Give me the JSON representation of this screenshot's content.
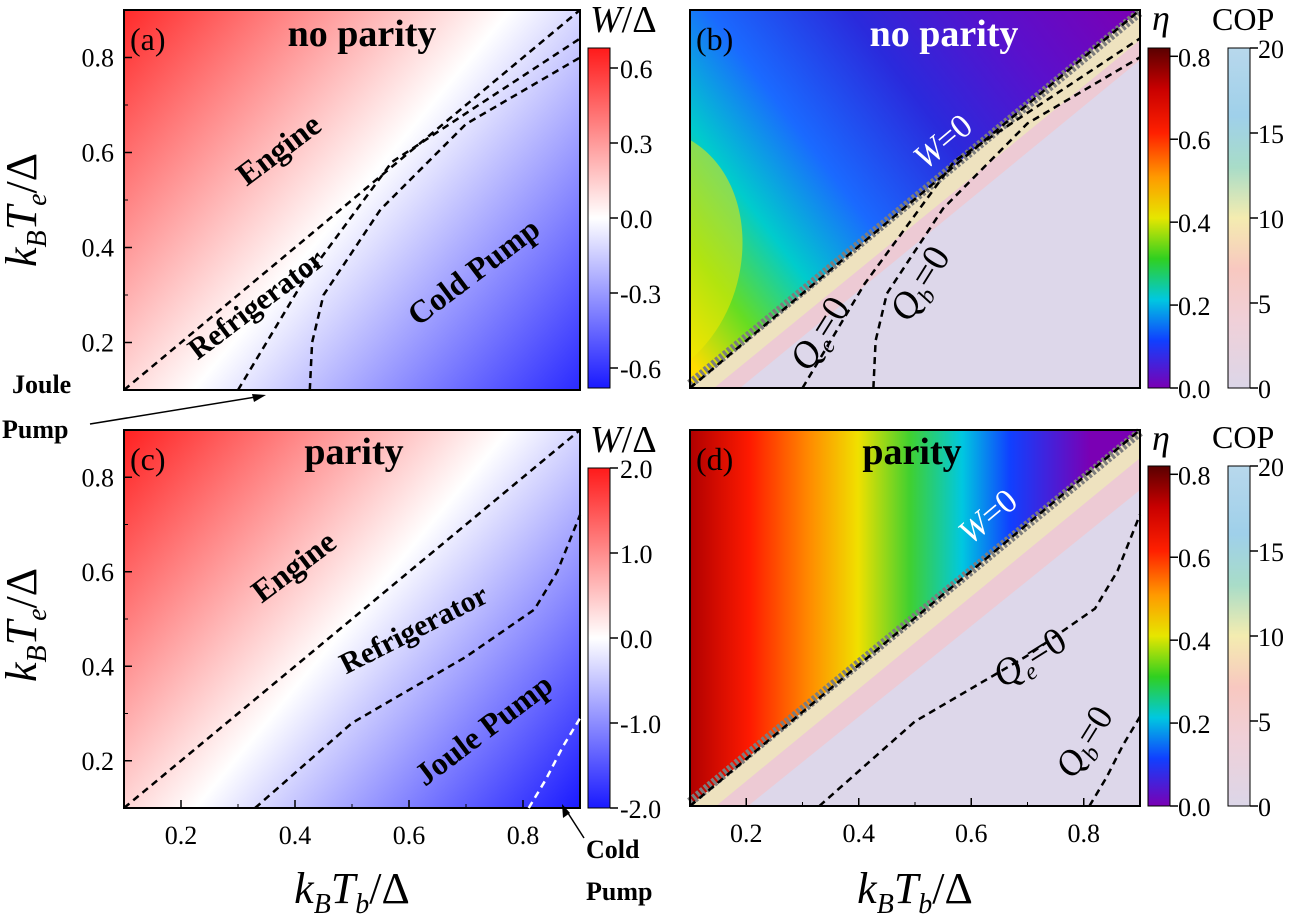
{
  "chart_data": [
    {
      "panel": "a",
      "type": "heatmap",
      "panel_label": "(a)",
      "title": "no parity",
      "ylabel_parts": {
        "k": "k",
        "B": "B",
        "T": "T",
        "e": "e",
        "rest": "/Δ"
      },
      "xlim": [
        0.1,
        0.9
      ],
      "ylim": [
        0.1,
        0.9
      ],
      "yticks": [
        0.2,
        0.4,
        0.6,
        0.8
      ],
      "ytick_labels": [
        "0.2",
        "0.4",
        "0.6",
        "0.8"
      ],
      "colorbar": {
        "label_parts": {
          "w": "W",
          "rest": "/Δ"
        },
        "ticks": [
          0.6,
          0.3,
          0.0,
          -0.3,
          -0.6
        ],
        "tick_labels": [
          "0.6",
          "0.3",
          "0.0",
          "-0.3",
          "-0.6"
        ],
        "range": [
          -0.68,
          0.68
        ]
      },
      "regions": [
        "Engine",
        "Refrigerator",
        "Cold Pump"
      ],
      "annotations": [
        "Joule",
        "Pump"
      ],
      "boundaries": [
        {
          "name": "W=0",
          "points": [
            [
              0.1,
              0.1
            ],
            [
              0.9,
              0.9
            ]
          ]
        },
        {
          "name": "Qe=0",
          "points": [
            [
              0.3,
              0.1
            ],
            [
              0.41,
              0.32
            ],
            [
              0.57,
              0.58
            ],
            [
              0.9,
              0.84
            ]
          ]
        },
        {
          "name": "Qb=0",
          "points": [
            [
              0.426,
              0.1
            ],
            [
              0.43,
              0.2
            ],
            [
              0.45,
              0.3
            ],
            [
              0.55,
              0.48
            ],
            [
              0.7,
              0.66
            ],
            [
              0.9,
              0.8
            ]
          ]
        }
      ]
    },
    {
      "panel": "b",
      "type": "heatmap",
      "panel_label": "(b)",
      "title": "no parity",
      "xlim": [
        0.1,
        0.9
      ],
      "ylim": [
        0.1,
        0.9
      ],
      "eta_colorbar": {
        "label": "η",
        "ticks": [
          0.8,
          0.6,
          0.4,
          0.2,
          0.0
        ],
        "tick_labels": [
          "0.8",
          "0.6",
          "0.4",
          "0.2",
          "0.0"
        ],
        "range": [
          0.0,
          0.82
        ]
      },
      "cop_colorbar": {
        "label": "COP",
        "ticks": [
          20,
          15,
          10,
          5,
          0
        ],
        "tick_labels": [
          "20",
          "15",
          "10",
          "5",
          "0"
        ],
        "range": [
          0,
          20
        ]
      },
      "curve_labels": {
        "w0": {
          "v": "W",
          "rest": "=0"
        },
        "qe0": {
          "q": "Q",
          "sub": "e",
          "rest": "=0"
        },
        "qb0": {
          "q": "Q",
          "sub": "b",
          "rest": "=0"
        }
      }
    },
    {
      "panel": "c",
      "type": "heatmap",
      "panel_label": "(c)",
      "title": "parity",
      "xlabel_parts": {
        "k": "k",
        "B": "B",
        "T": "T",
        "b": "b",
        "rest": "/Δ"
      },
      "ylabel_parts": {
        "k": "k",
        "B": "B",
        "T": "T",
        "e": "e",
        "rest": "/Δ"
      },
      "xlim": [
        0.1,
        0.9
      ],
      "ylim": [
        0.1,
        0.9
      ],
      "xticks": [
        0.2,
        0.4,
        0.6,
        0.8
      ],
      "xtick_labels": [
        "0.2",
        "0.4",
        "0.6",
        "0.8"
      ],
      "yticks": [
        0.2,
        0.4,
        0.6,
        0.8
      ],
      "ytick_labels": [
        "0.2",
        "0.4",
        "0.6",
        "0.8"
      ],
      "colorbar": {
        "label_parts": {
          "w": "W",
          "rest": "/Δ"
        },
        "ticks": [
          2.0,
          1.0,
          0.0,
          -1.0,
          -2.0
        ],
        "tick_labels": [
          "2.0",
          "1.0",
          "0.0",
          "-1.0",
          "-2.0"
        ],
        "range": [
          -2.0,
          2.0
        ]
      },
      "regions": [
        "Engine",
        "Refrigerator",
        "Joule Pump"
      ],
      "annotations": [
        "Cold",
        "Pump"
      ],
      "boundaries": [
        {
          "name": "W=0",
          "points": [
            [
              0.1,
              0.1
            ],
            [
              0.9,
              0.9
            ]
          ]
        },
        {
          "name": "Qe=0",
          "points": [
            [
              0.33,
              0.1
            ],
            [
              0.5,
              0.28
            ],
            [
              0.7,
              0.42
            ],
            [
              0.82,
              0.52
            ],
            [
              0.86,
              0.6
            ],
            [
              0.9,
              0.72
            ]
          ]
        },
        {
          "name": "Qb=0",
          "points": [
            [
              0.81,
              0.1
            ],
            [
              0.84,
              0.16
            ],
            [
              0.87,
              0.23
            ],
            [
              0.9,
              0.29
            ]
          ]
        }
      ]
    },
    {
      "panel": "d",
      "type": "heatmap",
      "panel_label": "(d)",
      "title": "parity",
      "xlabel_parts": {
        "k": "k",
        "B": "B",
        "T": "T",
        "b": "b",
        "rest": "/Δ"
      },
      "xlim": [
        0.1,
        0.9
      ],
      "ylim": [
        0.1,
        0.9
      ],
      "xticks": [
        0.2,
        0.4,
        0.6,
        0.8
      ],
      "xtick_labels": [
        "0.2",
        "0.4",
        "0.6",
        "0.8"
      ],
      "eta_colorbar": {
        "label": "η",
        "ticks": [
          0.8,
          0.6,
          0.4,
          0.2,
          0.0
        ],
        "tick_labels": [
          "0.8",
          "0.6",
          "0.4",
          "0.2",
          "0.0"
        ],
        "range": [
          0.0,
          0.82
        ]
      },
      "cop_colorbar": {
        "label": "COP",
        "ticks": [
          20,
          15,
          10,
          5,
          0
        ],
        "tick_labels": [
          "20",
          "15",
          "10",
          "5",
          "0"
        ],
        "range": [
          0,
          20
        ]
      },
      "curve_labels": {
        "w0": {
          "v": "W",
          "rest": "=0"
        },
        "qe0": {
          "q": "Q",
          "sub": "e",
          "rest": "=0"
        },
        "qb0": {
          "q": "Q",
          "sub": "b",
          "rest": "=0"
        }
      }
    }
  ],
  "colors": {
    "w_red": "#ff1a1a",
    "w_white": "#ffffff",
    "w_blue": "#1a1aff",
    "cop_low": "#dcd6e8",
    "cop_high": "#8ecae6",
    "w0_band": "#808080"
  }
}
